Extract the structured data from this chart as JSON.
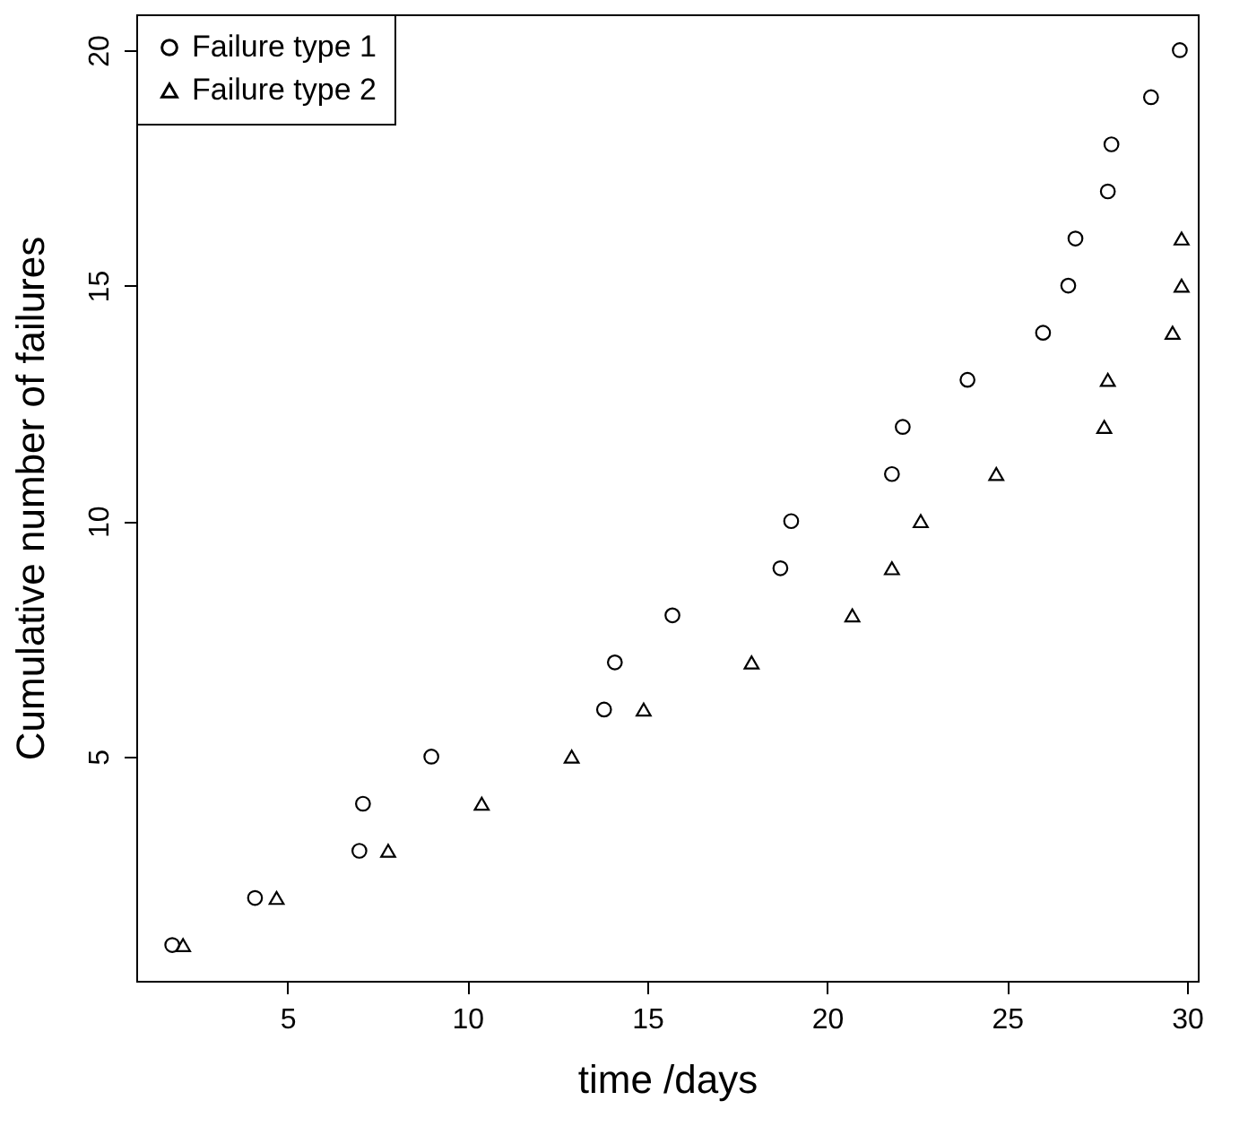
{
  "chart_data": {
    "type": "scatter",
    "xlabel": "time /days",
    "ylabel": "Cumulative number of failures",
    "xlim": [
      0.8,
      30.3
    ],
    "ylim": [
      0.24,
      20.76
    ],
    "xticks": [
      5,
      10,
      15,
      20,
      25,
      30
    ],
    "yticks": [
      5,
      10,
      15,
      20
    ],
    "grid": false,
    "legend": "top left",
    "series": [
      {
        "name": "Failure type 1",
        "color": "#000000",
        "marker": "circle",
        "x": [
          1.8,
          4.1,
          7.0,
          7.1,
          9.0,
          13.8,
          14.1,
          15.7,
          18.7,
          19.0,
          21.8,
          22.1,
          23.9,
          26.0,
          26.7,
          26.9,
          27.8,
          27.9,
          29.0,
          29.8
        ],
        "values": [
          1,
          2,
          3,
          4,
          5,
          6,
          7,
          8,
          9,
          10,
          11,
          12,
          13,
          14,
          15,
          16,
          17,
          18,
          19,
          20
        ]
      },
      {
        "name": "Failure type 2",
        "color": "#000000",
        "marker": "triangle",
        "x": [
          2.1,
          4.7,
          7.8,
          10.4,
          12.9,
          14.9,
          17.9,
          20.7,
          21.8,
          22.6,
          24.7,
          27.7,
          27.8,
          29.6,
          29.85,
          29.85
        ],
        "values": [
          1,
          2,
          3,
          4,
          5,
          6,
          7,
          8,
          9,
          10,
          11,
          12,
          13,
          14,
          15,
          16
        ]
      }
    ]
  }
}
